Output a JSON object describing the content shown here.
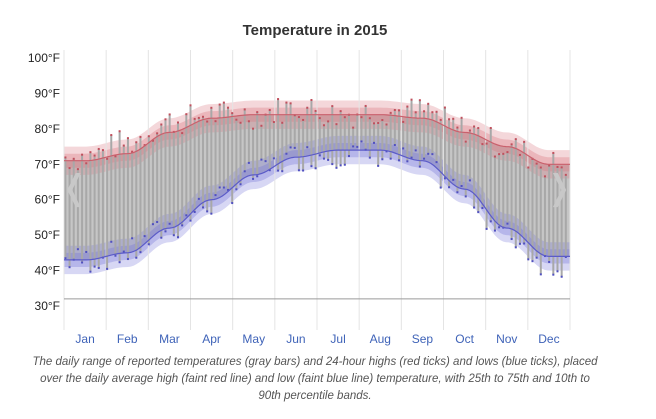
{
  "chart_data": {
    "type": "area",
    "title": "Temperature in 2015",
    "xlabel": "",
    "ylabel": "",
    "y_unit": "°F",
    "ylim": [
      30,
      100
    ],
    "ytick_labels": [
      "30°F",
      "40°F",
      "50°F",
      "60°F",
      "70°F",
      "80°F",
      "90°F",
      "100°F"
    ],
    "categories": [
      "Jan",
      "Feb",
      "Mar",
      "Apr",
      "May",
      "Jun",
      "Jul",
      "Aug",
      "Sep",
      "Oct",
      "Nov",
      "Dec"
    ],
    "grid": true,
    "series": [
      {
        "name": "average high",
        "values": [
          71,
          73,
          79,
          83,
          84,
          84,
          84,
          84,
          83,
          79,
          75,
          70
        ]
      },
      {
        "name": "average low",
        "values": [
          43,
          45,
          52,
          60,
          67,
          72,
          74,
          74,
          71,
          63,
          52,
          44
        ]
      },
      {
        "name": "daily high",
        "values": [
          72,
          76,
          82,
          84,
          84,
          86,
          84,
          85,
          85,
          80,
          75,
          70
        ]
      },
      {
        "name": "daily low",
        "values": [
          43,
          45,
          52,
          59,
          67,
          72,
          73,
          73,
          70,
          62,
          50,
          42
        ]
      }
    ],
    "colors": {
      "high": "#d9707a",
      "low": "#6f6fd8",
      "range": "#a8a8a8"
    }
  },
  "caption": "The daily range of reported temperatures (gray bars) and 24-hour highs (red ticks) and lows (blue ticks), placed over the daily average high (faint red line) and low (faint blue line) temperature, with 25th to 75th and 10th to 90th percentile bands.",
  "nav": {
    "prev_icon": "chevron-left-icon",
    "next_icon": "chevron-right-icon"
  }
}
